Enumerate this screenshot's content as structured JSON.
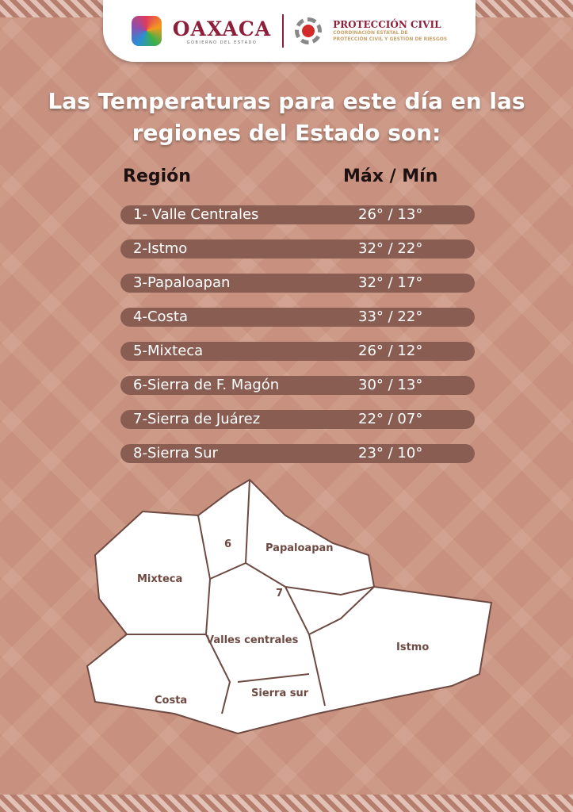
{
  "header": {
    "oaxaca_title": "OAXACA",
    "oaxaca_subtitle": "GOBIERNO DEL ESTADO",
    "pc_title": "PROTECCIÓN CIVIL",
    "pc_subtitle_1": "COORDINACIÓN ESTATAL DE",
    "pc_subtitle_2": "PROTECCIÓN CIVIL Y GESTIÓN DE RIESGOS"
  },
  "title_line1": "Las Temperaturas para este día en las",
  "title_line2": "regiones del Estado son:",
  "columns": {
    "region": "Región",
    "maxmin": "Máx / Mín"
  },
  "rows": [
    {
      "region": "1- Valle Centrales",
      "temps": "26° / 13°"
    },
    {
      "region": "2-Istmo",
      "temps": "32° / 22°"
    },
    {
      "region": "3-Papaloapan",
      "temps": "32° / 17°"
    },
    {
      "region": "4-Costa",
      "temps": "33° / 22°"
    },
    {
      "region": "5-Mixteca",
      "temps": "26° / 12°"
    },
    {
      "region": "6-Sierra de F. Magón",
      "temps": "30° / 13°"
    },
    {
      "region": "7-Sierra de Juárez",
      "temps": "22° / 07°"
    },
    {
      "region": "8-Sierra Sur",
      "temps": "23° / 10°"
    }
  ],
  "map_labels": {
    "r6": "6",
    "papaloapan": "Papaloapan",
    "mixteca": "Mixteca",
    "r7": "7",
    "valles": "Valles centrales",
    "istmo": "Istmo",
    "costa": "Costa",
    "sierra_sur": "Sierra sur"
  },
  "colors": {
    "background": "#c8917f",
    "pill": "#8a5d53",
    "brand": "#8d1f3a"
  }
}
